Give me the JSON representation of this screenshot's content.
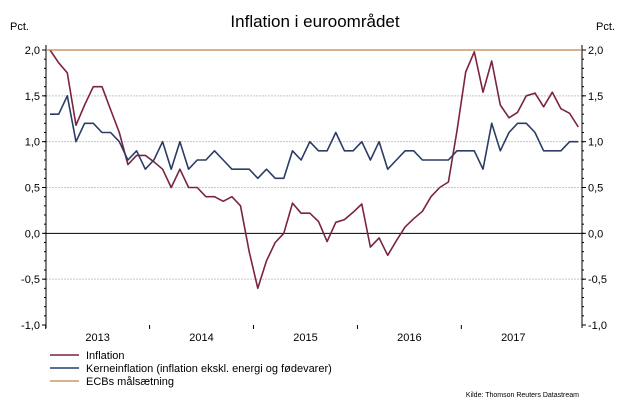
{
  "chart_data": {
    "type": "line",
    "title": "Inflation i euroområdet",
    "ylabel_left": "Pct.",
    "ylabel_right": "Pct.",
    "ylim": [
      -1.0,
      2.0
    ],
    "yticks": [
      2.0,
      1.5,
      1.0,
      0.5,
      0.0,
      -0.5,
      -1.0
    ],
    "ytick_labels": [
      "2,0",
      "1,5",
      "1,0",
      "0,5",
      "0,0",
      "-0,5",
      "-1,0"
    ],
    "x_start": "2013-01",
    "x_end": "2018-02",
    "x_frequency": "monthly",
    "xtick_labels": [
      "2013",
      "2014",
      "2015",
      "2016",
      "2017"
    ],
    "grid": true,
    "legend_placement": "bottom-left",
    "series": [
      {
        "name": "Inflation",
        "color": "#7a2440",
        "values": [
          2.0,
          1.86,
          1.75,
          1.18,
          1.4,
          1.6,
          1.6,
          1.35,
          1.1,
          0.75,
          0.85,
          0.85,
          0.78,
          0.7,
          0.5,
          0.7,
          0.5,
          0.5,
          0.4,
          0.4,
          0.35,
          0.4,
          0.3,
          -0.2,
          -0.6,
          -0.3,
          -0.1,
          0.0,
          0.33,
          0.22,
          0.22,
          0.13,
          -0.09,
          0.12,
          0.15,
          0.23,
          0.32,
          -0.15,
          -0.05,
          -0.24,
          -0.08,
          0.07,
          0.16,
          0.24,
          0.4,
          0.5,
          0.56,
          1.12,
          1.76,
          1.98,
          1.54,
          1.88,
          1.4,
          1.26,
          1.32,
          1.5,
          1.53,
          1.38,
          1.54,
          1.36,
          1.31,
          1.16
        ]
      },
      {
        "name": "Kerneinflation (inflation ekskl.  energi og fødevarer)",
        "color": "#2b3d66",
        "values": [
          1.3,
          1.3,
          1.5,
          1.0,
          1.2,
          1.2,
          1.1,
          1.1,
          1.0,
          0.8,
          0.9,
          0.7,
          0.8,
          1.0,
          0.7,
          1.0,
          0.7,
          0.8,
          0.8,
          0.9,
          0.8,
          0.7,
          0.7,
          0.7,
          0.6,
          0.7,
          0.6,
          0.6,
          0.9,
          0.8,
          1.0,
          0.9,
          0.9,
          1.1,
          0.9,
          0.9,
          1.0,
          0.8,
          1.0,
          0.7,
          0.8,
          0.9,
          0.9,
          0.8,
          0.8,
          0.8,
          0.8,
          0.9,
          0.9,
          0.9,
          0.7,
          1.2,
          0.9,
          1.1,
          1.2,
          1.2,
          1.1,
          0.9,
          0.9,
          0.9,
          1.0,
          1.0
        ]
      },
      {
        "name": "ECBs målsætning",
        "color": "#c0834a",
        "constant": 2.0
      }
    ],
    "source": "Kilde: Thomson Reuters Datastream"
  }
}
